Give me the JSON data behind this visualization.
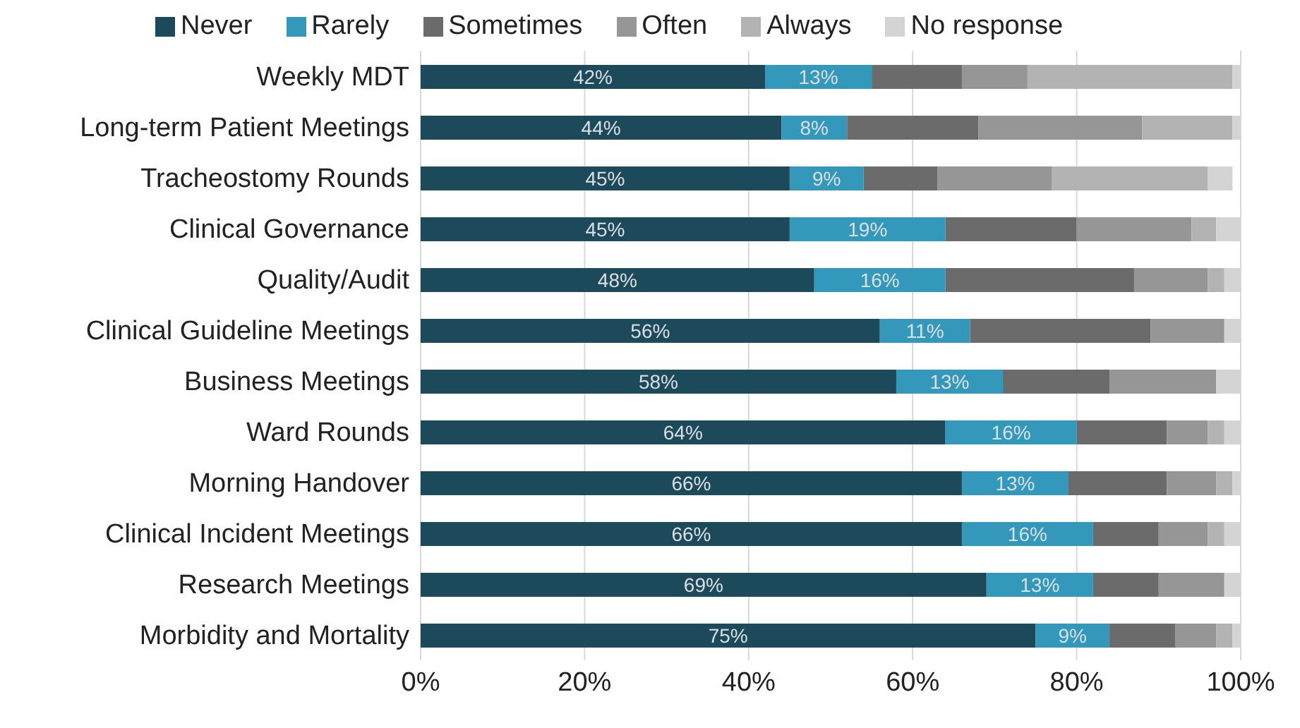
{
  "chart_data": {
    "type": "bar",
    "orientation": "horizontal",
    "stacked": true,
    "categories": [
      "Weekly MDT",
      "Long-term Patient Meetings",
      "Tracheostomy Rounds",
      "Clinical Governance",
      "Quality/Audit",
      "Clinical Guideline Meetings",
      "Business Meetings",
      "Ward Rounds",
      "Morning Handover",
      "Clinical Incident Meetings",
      "Research Meetings",
      "Morbidity and Mortality"
    ],
    "series": [
      {
        "name": "Never",
        "color": "#1c4a5a",
        "values": [
          42,
          44,
          45,
          45,
          48,
          56,
          58,
          64,
          66,
          66,
          69,
          75
        ],
        "value_labels": [
          "42%",
          "44%",
          "45%",
          "45%",
          "48%",
          "56%",
          "58%",
          "64%",
          "66%",
          "66%",
          "69%",
          "75%"
        ]
      },
      {
        "name": "Rarely",
        "color": "#3498bb",
        "values": [
          13,
          8,
          9,
          19,
          16,
          11,
          13,
          16,
          13,
          16,
          13,
          9
        ],
        "value_labels": [
          "13%",
          "8%",
          "9%",
          "19%",
          "16%",
          "11%",
          "13%",
          "16%",
          "13%",
          "16%",
          "13%",
          "9%"
        ]
      },
      {
        "name": "Sometimes",
        "color": "#6b6b6b",
        "values": [
          11,
          16,
          9,
          16,
          23,
          22,
          13,
          11,
          12,
          8,
          8,
          8
        ]
      },
      {
        "name": "Often",
        "color": "#969696",
        "values": [
          8,
          20,
          14,
          14,
          9,
          9,
          13,
          5,
          6,
          6,
          8,
          5
        ]
      },
      {
        "name": "Always",
        "color": "#b3b3b3",
        "values": [
          25,
          11,
          19,
          3,
          2,
          0,
          0,
          2,
          2,
          2,
          0,
          2
        ]
      },
      {
        "name": "No response",
        "color": "#d4d4d4",
        "values": [
          1,
          1,
          3,
          3,
          2,
          2,
          3,
          2,
          1,
          2,
          2,
          1
        ]
      }
    ],
    "xlim": [
      0,
      100
    ],
    "xticks": [
      {
        "value": 0,
        "label": "0%"
      },
      {
        "value": 20,
        "label": "20%"
      },
      {
        "value": 40,
        "label": "40%"
      },
      {
        "value": 60,
        "label": "60%"
      },
      {
        "value": 80,
        "label": "80%"
      },
      {
        "value": 100,
        "label": "100%"
      }
    ],
    "grid": "x",
    "legend": "top"
  }
}
